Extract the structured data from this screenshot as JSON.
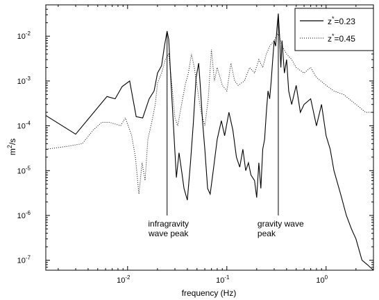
{
  "chart_data": {
    "type": "line",
    "xlabel": "frequency (Hz)",
    "ylabel_base": "m",
    "ylabel_exp": "2",
    "ylabel_tail": "/s",
    "xscale": "log",
    "yscale": "log",
    "xlim": [
      0.0015,
      3
    ],
    "ylim": [
      6e-08,
      0.05
    ],
    "grid": false,
    "legend_position": "top-right",
    "x_ticks": [
      {
        "value": 0.01,
        "base": "10",
        "exp": "-2"
      },
      {
        "value": 0.1,
        "base": "10",
        "exp": "-1"
      },
      {
        "value": 1,
        "base": "10",
        "exp": "0"
      }
    ],
    "y_ticks": [
      {
        "value": 1e-07,
        "base": "10",
        "exp": "-7"
      },
      {
        "value": 1e-06,
        "base": "10",
        "exp": "-6"
      },
      {
        "value": 1e-05,
        "base": "10",
        "exp": "-5"
      },
      {
        "value": 0.0001,
        "base": "10",
        "exp": "-4"
      },
      {
        "value": 0.001,
        "base": "10",
        "exp": "-3"
      },
      {
        "value": 0.01,
        "base": "10",
        "exp": "-2"
      }
    ],
    "series": [
      {
        "name_base": "z",
        "name_sup": "*",
        "name_tail": "=0.23",
        "style": "solid",
        "x": [
          0.0015,
          0.003,
          0.0062,
          0.0075,
          0.0088,
          0.0105,
          0.0122,
          0.0142,
          0.0165,
          0.0185,
          0.02,
          0.022,
          0.0235,
          0.025,
          0.026,
          0.0275,
          0.029,
          0.031,
          0.033,
          0.035,
          0.037,
          0.04,
          0.043,
          0.046,
          0.049,
          0.052,
          0.054,
          0.057,
          0.06,
          0.064,
          0.068,
          0.073,
          0.08,
          0.088,
          0.095,
          0.105,
          0.115,
          0.125,
          0.135,
          0.145,
          0.155,
          0.165,
          0.175,
          0.19,
          0.2,
          0.21,
          0.22,
          0.23,
          0.24,
          0.25,
          0.26,
          0.27,
          0.28,
          0.29,
          0.3,
          0.31,
          0.32,
          0.33,
          0.34,
          0.35,
          0.36,
          0.38,
          0.4,
          0.42,
          0.45,
          0.5,
          0.55,
          0.6,
          0.7,
          0.8,
          0.9,
          1.0,
          1.1,
          1.2,
          1.4,
          1.6,
          1.8,
          2.0,
          2.3,
          2.6,
          3.0
        ],
        "y": [
          0.00017,
          6.5e-05,
          0.00045,
          0.0004,
          0.00075,
          0.001,
          0.00016,
          0.00015,
          0.0004,
          0.0006,
          0.0015,
          0.0022,
          0.006,
          0.013,
          0.0085,
          0.0008,
          0.0001,
          7e-06,
          2.5e-05,
          1e-05,
          4e-06,
          2.2e-06,
          1.5e-05,
          0.00012,
          0.0012,
          0.0025,
          0.0008,
          0.00012,
          3e-05,
          4e-06,
          3e-06,
          1e-05,
          5e-05,
          0.00013,
          6e-05,
          0.0002,
          8e-05,
          2e-05,
          1.2e-05,
          3e-05,
          1e-05,
          1.5e-05,
          8e-06,
          6e-06,
          2.5e-06,
          1.5e-05,
          4e-06,
          3e-05,
          5e-05,
          0.0002,
          0.0006,
          0.0004,
          0.001,
          0.003,
          0.008,
          0.006,
          0.015,
          0.032,
          0.01,
          0.002,
          0.008,
          0.0015,
          0.003,
          0.0006,
          0.0003,
          0.0008,
          0.0002,
          0.0003,
          0.0004,
          0.0001,
          0.0003,
          6e-05,
          3e-05,
          1e-05,
          3e-06,
          1e-06,
          5e-07,
          3e-07,
          1e-07,
          8e-08,
          6e-08
        ]
      },
      {
        "name_base": "z",
        "name_sup": "*",
        "name_tail": "=0.45",
        "style": "dotted",
        "x": [
          0.0015,
          0.0025,
          0.0035,
          0.0045,
          0.0055,
          0.0065,
          0.0075,
          0.0085,
          0.0095,
          0.011,
          0.012,
          0.013,
          0.014,
          0.015,
          0.016,
          0.0175,
          0.019,
          0.02,
          0.022,
          0.024,
          0.026,
          0.028,
          0.03,
          0.032,
          0.035,
          0.038,
          0.041,
          0.044,
          0.047,
          0.05,
          0.055,
          0.06,
          0.065,
          0.07,
          0.075,
          0.08,
          0.09,
          0.1,
          0.11,
          0.12,
          0.13,
          0.15,
          0.17,
          0.19,
          0.21,
          0.23,
          0.25,
          0.27,
          0.3,
          0.33,
          0.36,
          0.4,
          0.45,
          0.5,
          0.6,
          0.7,
          0.8,
          1.0,
          1.2,
          1.5,
          2.0,
          2.5,
          3.0
        ],
        "y": [
          3e-05,
          3.5e-05,
          4e-05,
          8e-05,
          0.00012,
          0.00012,
          0.00011,
          0.0001,
          0.00015,
          6e-05,
          2e-05,
          3e-06,
          1.5e-05,
          6e-06,
          5e-05,
          0.00012,
          0.0003,
          0.0009,
          0.0015,
          0.003,
          0.004,
          0.0008,
          0.00015,
          0.0001,
          0.0003,
          0.0008,
          0.0015,
          0.004,
          0.002,
          0.0008,
          0.0002,
          0.0001,
          0.0004,
          0.005,
          0.001,
          0.002,
          0.0008,
          0.0006,
          0.0025,
          0.001,
          0.0008,
          0.001,
          0.002,
          0.0015,
          0.003,
          0.002,
          0.004,
          0.006,
          0.008,
          0.012,
          0.006,
          0.004,
          0.003,
          0.002,
          0.0015,
          0.002,
          0.0012,
          0.0008,
          0.0006,
          0.0005,
          0.0003,
          0.0002,
          0.0002
        ]
      }
    ],
    "annotations": [
      {
        "x": 0.025,
        "y_from": 0.012,
        "y_to": 1e-06,
        "lines": [
          "infragravity",
          "wave peak"
        ]
      },
      {
        "x": 0.33,
        "y_from": 0.03,
        "y_to": 1e-06,
        "lines": [
          "gravity wave",
          "peak"
        ]
      }
    ]
  }
}
